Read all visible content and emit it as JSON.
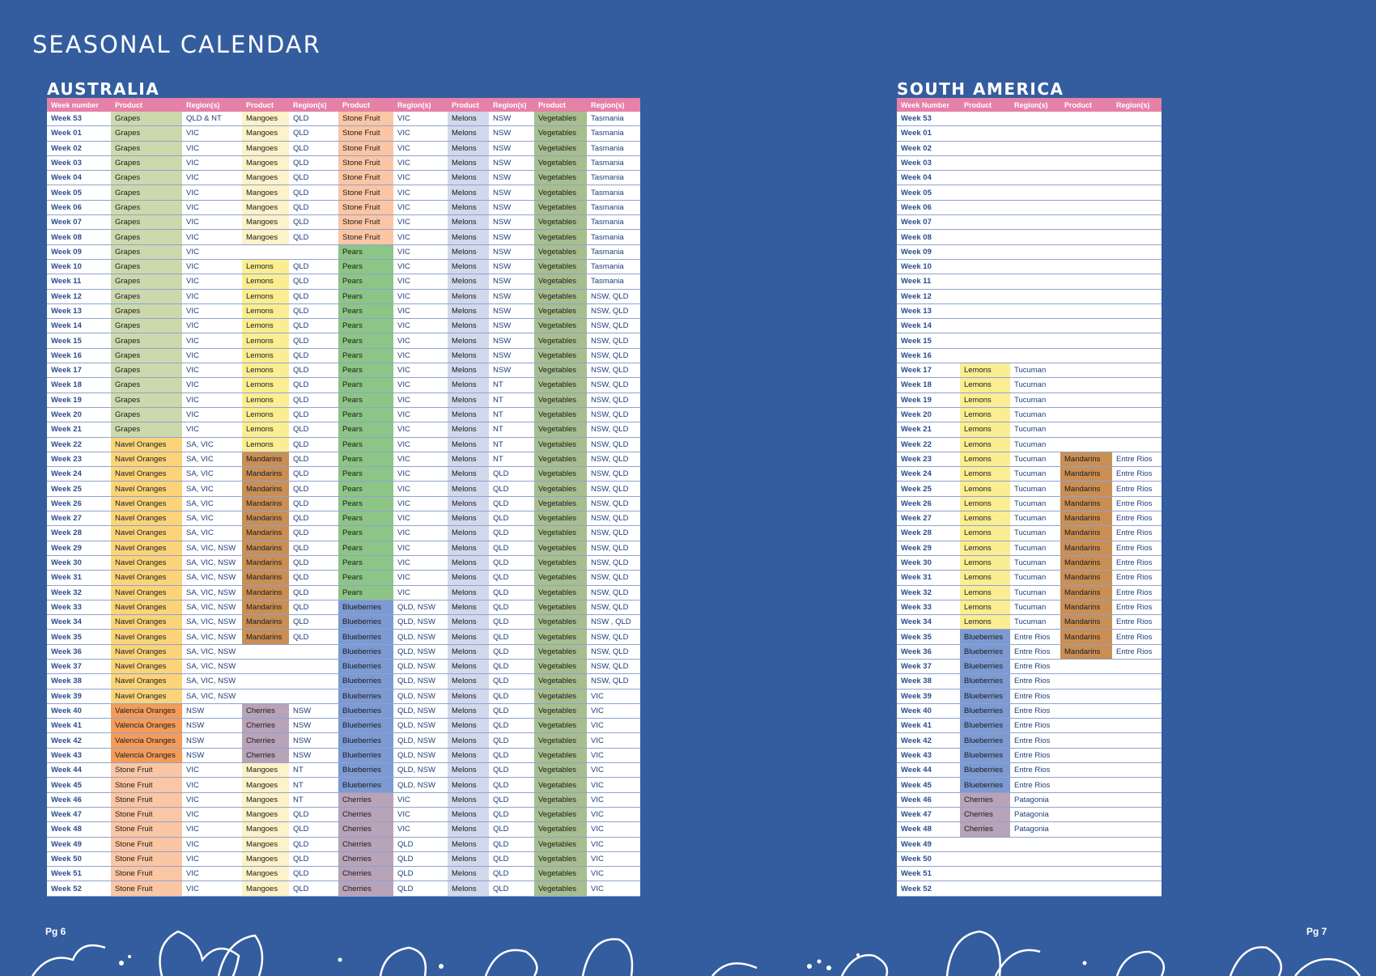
{
  "title": "SEASONAL CALENDAR",
  "australia": {
    "title": "AUSTRALIA",
    "headers": [
      "Week number",
      "Product",
      "Region(s)",
      "Product",
      "Region(s)",
      "Product",
      "Region(s)",
      "Product",
      "Region(s)",
      "Product",
      "Region(s)"
    ],
    "rows": [
      [
        "Week 53",
        "Grapes",
        "QLD & NT",
        "Mangoes",
        "QLD",
        "Stone Fruit",
        "VIC",
        "Melons",
        "NSW",
        "Vegetables",
        "Tasmania"
      ],
      [
        "Week 01",
        "Grapes",
        "VIC",
        "Mangoes",
        "QLD",
        "Stone Fruit",
        "VIC",
        "Melons",
        "NSW",
        "Vegetables",
        "Tasmania"
      ],
      [
        "Week 02",
        "Grapes",
        "VIC",
        "Mangoes",
        "QLD",
        "Stone Fruit",
        "VIC",
        "Melons",
        "NSW",
        "Vegetables",
        "Tasmania"
      ],
      [
        "Week 03",
        "Grapes",
        "VIC",
        "Mangoes",
        "QLD",
        "Stone Fruit",
        "VIC",
        "Melons",
        "NSW",
        "Vegetables",
        "Tasmania"
      ],
      [
        "Week 04",
        "Grapes",
        "VIC",
        "Mangoes",
        "QLD",
        "Stone Fruit",
        "VIC",
        "Melons",
        "NSW",
        "Vegetables",
        "Tasmania"
      ],
      [
        "Week 05",
        "Grapes",
        "VIC",
        "Mangoes",
        "QLD",
        "Stone Fruit",
        "VIC",
        "Melons",
        "NSW",
        "Vegetables",
        "Tasmania"
      ],
      [
        "Week 06",
        "Grapes",
        "VIC",
        "Mangoes",
        "QLD",
        "Stone Fruit",
        "VIC",
        "Melons",
        "NSW",
        "Vegetables",
        "Tasmania"
      ],
      [
        "Week 07",
        "Grapes",
        "VIC",
        "Mangoes",
        "QLD",
        "Stone Fruit",
        "VIC",
        "Melons",
        "NSW",
        "Vegetables",
        "Tasmania"
      ],
      [
        "Week 08",
        "Grapes",
        "VIC",
        "Mangoes",
        "QLD",
        "Stone Fruit",
        "VIC",
        "Melons",
        "NSW",
        "Vegetables",
        "Tasmania"
      ],
      [
        "Week 09",
        "Grapes",
        "VIC",
        "",
        "",
        "Pears",
        "VIC",
        "Melons",
        "NSW",
        "Vegetables",
        "Tasmania"
      ],
      [
        "Week 10",
        "Grapes",
        "VIC",
        "Lemons",
        "QLD",
        "Pears",
        "VIC",
        "Melons",
        "NSW",
        "Vegetables",
        "Tasmania"
      ],
      [
        "Week 11",
        "Grapes",
        "VIC",
        "Lemons",
        "QLD",
        "Pears",
        "VIC",
        "Melons",
        "NSW",
        "Vegetables",
        "Tasmania"
      ],
      [
        "Week 12",
        "Grapes",
        "VIC",
        "Lemons",
        "QLD",
        "Pears",
        "VIC",
        "Melons",
        "NSW",
        "Vegetables",
        "NSW, QLD"
      ],
      [
        "Week 13",
        "Grapes",
        "VIC",
        "Lemons",
        "QLD",
        "Pears",
        "VIC",
        "Melons",
        "NSW",
        "Vegetables",
        "NSW, QLD"
      ],
      [
        "Week 14",
        "Grapes",
        "VIC",
        "Lemons",
        "QLD",
        "Pears",
        "VIC",
        "Melons",
        "NSW",
        "Vegetables",
        "NSW, QLD"
      ],
      [
        "Week 15",
        "Grapes",
        "VIC",
        "Lemons",
        "QLD",
        "Pears",
        "VIC",
        "Melons",
        "NSW",
        "Vegetables",
        "NSW, QLD"
      ],
      [
        "Week 16",
        "Grapes",
        "VIC",
        "Lemons",
        "QLD",
        "Pears",
        "VIC",
        "Melons",
        "NSW",
        "Vegetables",
        "NSW, QLD"
      ],
      [
        "Week 17",
        "Grapes",
        "VIC",
        "Lemons",
        "QLD",
        "Pears",
        "VIC",
        "Melons",
        "NSW",
        "Vegetables",
        "NSW, QLD"
      ],
      [
        "Week 18",
        "Grapes",
        "VIC",
        "Lemons",
        "QLD",
        "Pears",
        "VIC",
        "Melons",
        "NT",
        "Vegetables",
        "NSW, QLD"
      ],
      [
        "Week 19",
        "Grapes",
        "VIC",
        "Lemons",
        "QLD",
        "Pears",
        "VIC",
        "Melons",
        "NT",
        "Vegetables",
        "NSW, QLD"
      ],
      [
        "Week 20",
        "Grapes",
        "VIC",
        "Lemons",
        "QLD",
        "Pears",
        "VIC",
        "Melons",
        "NT",
        "Vegetables",
        "NSW, QLD"
      ],
      [
        "Week 21",
        "Grapes",
        "VIC",
        "Lemons",
        "QLD",
        "Pears",
        "VIC",
        "Melons",
        "NT",
        "Vegetables",
        "NSW, QLD"
      ],
      [
        "Week 22",
        "Navel Oranges",
        "SA, VIC",
        "Lemons",
        "QLD",
        "Pears",
        "VIC",
        "Melons",
        "NT",
        "Vegetables",
        "NSW, QLD"
      ],
      [
        "Week  23",
        "Navel Oranges",
        "SA, VIC",
        "Mandarins",
        "QLD",
        "Pears",
        "VIC",
        "Melons",
        "NT",
        "Vegetables",
        "NSW, QLD"
      ],
      [
        "Week 24",
        "Navel Oranges",
        "SA, VIC",
        "Mandarins",
        "QLD",
        "Pears",
        "VIC",
        "Melons",
        "QLD",
        "Vegetables",
        "NSW, QLD"
      ],
      [
        "Week 25",
        "Navel Oranges",
        "SA, VIC",
        "Mandarins",
        "QLD",
        "Pears",
        "VIC",
        "Melons",
        "QLD",
        "Vegetables",
        "NSW, QLD"
      ],
      [
        "Week 26",
        "Navel Oranges",
        "SA, VIC",
        "Mandarins",
        "QLD",
        "Pears",
        "VIC",
        "Melons",
        "QLD",
        "Vegetables",
        "NSW, QLD"
      ],
      [
        "Week 27",
        "Navel Oranges",
        "SA, VIC",
        "Mandarins",
        "QLD",
        "Pears",
        "VIC",
        "Melons",
        "QLD",
        "Vegetables",
        "NSW, QLD"
      ],
      [
        "Week 28",
        "Navel Oranges",
        "SA, VIC",
        "Mandarins",
        "QLD",
        "Pears",
        "VIC",
        "Melons",
        "QLD",
        "Vegetables",
        "NSW, QLD"
      ],
      [
        "Week 29",
        "Navel Oranges",
        "SA, VIC, NSW",
        "Mandarins",
        "QLD",
        "Pears",
        "VIC",
        "Melons",
        "QLD",
        "Vegetables",
        "NSW, QLD"
      ],
      [
        "Week 30",
        "Navel Oranges",
        "SA, VIC, NSW",
        "Mandarins",
        "QLD",
        "Pears",
        "VIC",
        "Melons",
        "QLD",
        "Vegetables",
        "NSW, QLD"
      ],
      [
        "Week 31",
        "Navel Oranges",
        "SA, VIC, NSW",
        "Mandarins",
        "QLD",
        "Pears",
        "VIC",
        "Melons",
        "QLD",
        "Vegetables",
        "NSW, QLD"
      ],
      [
        "Week 32",
        "Navel Oranges",
        "SA, VIC, NSW",
        "Mandarins",
        "QLD",
        "Pears",
        "VIC",
        "Melons",
        "QLD",
        "Vegetables",
        "NSW, QLD"
      ],
      [
        "Week 33",
        "Navel Oranges",
        "SA, VIC, NSW",
        "Mandarins",
        "QLD",
        "Blueberries",
        "QLD, NSW",
        "Melons",
        "QLD",
        "Vegetables",
        "NSW, QLD"
      ],
      [
        "Week 34",
        "Navel Oranges",
        "SA, VIC, NSW",
        "Mandarins",
        "QLD",
        "Blueberries",
        "QLD, NSW",
        "Melons",
        "QLD",
        "Vegetables",
        "NSW , QLD"
      ],
      [
        "Week 35",
        "Navel Oranges",
        "SA, VIC, NSW",
        "Mandarins",
        "QLD",
        "Blueberries",
        "QLD, NSW",
        "Melons",
        "QLD",
        "Vegetables",
        "NSW, QLD"
      ],
      [
        "Week 36",
        "Navel Oranges",
        "SA, VIC, NSW",
        "",
        "",
        "Blueberries",
        "QLD, NSW",
        "Melons",
        "QLD",
        "Vegetables",
        "NSW, QLD"
      ],
      [
        "Week 37",
        "Navel Oranges",
        "SA, VIC, NSW",
        "",
        "",
        "Blueberries",
        "QLD, NSW",
        "Melons",
        "QLD",
        "Vegetables",
        "NSW, QLD"
      ],
      [
        "Week 38",
        "Navel Oranges",
        "SA, VIC, NSW",
        "",
        "",
        "Blueberries",
        "QLD, NSW",
        "Melons",
        "QLD",
        "Vegetables",
        "NSW, QLD"
      ],
      [
        "Week 39",
        "Navel Oranges",
        "SA, VIC, NSW",
        "",
        "",
        "Blueberries",
        "QLD, NSW",
        "Melons",
        "QLD",
        "Vegetables",
        "VIC"
      ],
      [
        "Week 40",
        "Valencia Oranges",
        "NSW",
        "Cherries",
        "NSW",
        "Blueberries",
        "QLD, NSW",
        "Melons",
        "QLD",
        "Vegetables",
        "VIC"
      ],
      [
        "Week 41",
        "Valencia Oranges",
        "NSW",
        "Cherries",
        "NSW",
        "Blueberries",
        "QLD, NSW",
        "Melons",
        "QLD",
        "Vegetables",
        "VIC"
      ],
      [
        "Week 42",
        "Valencia Oranges",
        "NSW",
        "Cherries",
        "NSW",
        "Blueberries",
        "QLD, NSW",
        "Melons",
        "QLD",
        "Vegetables",
        "VIC"
      ],
      [
        "Week 43",
        "Valencia Oranges",
        "NSW",
        "Cherries",
        "NSW",
        "Blueberries",
        "QLD, NSW",
        "Melons",
        "QLD",
        "Vegetables",
        "VIC"
      ],
      [
        "Week 44",
        "Stone Fruit",
        "VIC",
        "Mangoes",
        "NT",
        "Blueberries",
        "QLD, NSW",
        "Melons",
        "QLD",
        "Vegetables",
        "VIC"
      ],
      [
        "Week 45",
        "Stone Fruit",
        "VIC",
        "Mangoes",
        "NT",
        "Blueberries",
        "QLD, NSW",
        "Melons",
        "QLD",
        "Vegetables",
        "VIC"
      ],
      [
        "Week 46",
        "Stone Fruit",
        "VIC",
        "Mangoes",
        "NT",
        "Cherries",
        "VIC",
        "Melons",
        "QLD",
        "Vegetables",
        "VIC"
      ],
      [
        "Week 47",
        "Stone Fruit",
        "VIC",
        "Mangoes",
        "QLD",
        "Cherries",
        "VIC",
        "Melons",
        "QLD",
        "Vegetables",
        "VIC"
      ],
      [
        "Week 48",
        "Stone Fruit",
        "VIC",
        "Mangoes",
        "QLD",
        "Cherries",
        "VIC",
        "Melons",
        "QLD",
        "Vegetables",
        "VIC"
      ],
      [
        "Week 49",
        "Stone Fruit",
        "VIC",
        "Mangoes",
        "QLD",
        "Cherries",
        "QLD",
        "Melons",
        "QLD",
        "Vegetables",
        "VIC"
      ],
      [
        "Week 50",
        "Stone Fruit",
        "VIC",
        "Mangoes",
        "QLD",
        "Cherries",
        "QLD",
        "Melons",
        "QLD",
        "Vegetables",
        "VIC"
      ],
      [
        "Week 51",
        "Stone Fruit",
        "VIC",
        "Mangoes",
        "QLD",
        "Cherries",
        "QLD",
        "Melons",
        "QLD",
        "Vegetables",
        "VIC"
      ],
      [
        "Week 52",
        "Stone Fruit",
        "VIC",
        "Mangoes",
        "QLD",
        "Cherries",
        "QLD",
        "Melons",
        "QLD",
        "Vegetables",
        "VIC"
      ]
    ]
  },
  "south_america": {
    "title": "SOUTH  AMERICA",
    "headers": [
      "Week Number",
      "Product",
      "Region(s)",
      "Product",
      "Region(s)"
    ],
    "rows": [
      [
        "Week 53",
        "",
        "",
        "",
        ""
      ],
      [
        "Week 01",
        "",
        "",
        "",
        ""
      ],
      [
        "Week 02",
        "",
        "",
        "",
        ""
      ],
      [
        "Week 03",
        "",
        "",
        "",
        ""
      ],
      [
        "Week 04",
        "",
        "",
        "",
        ""
      ],
      [
        "Week 05",
        "",
        "",
        "",
        ""
      ],
      [
        "Week 06",
        "",
        "",
        "",
        ""
      ],
      [
        "Week 07",
        "",
        "",
        "",
        ""
      ],
      [
        "Week 08",
        "",
        "",
        "",
        ""
      ],
      [
        "Week 09",
        "",
        "",
        "",
        ""
      ],
      [
        "Week 10",
        "",
        "",
        "",
        ""
      ],
      [
        "Week 11",
        "",
        "",
        "",
        ""
      ],
      [
        "Week 12",
        "",
        "",
        "",
        ""
      ],
      [
        "Week 13",
        "",
        "",
        "",
        ""
      ],
      [
        "Week 14",
        "",
        "",
        "",
        ""
      ],
      [
        "Week 15",
        "",
        "",
        "",
        ""
      ],
      [
        "Week 16",
        "",
        "",
        "",
        ""
      ],
      [
        "Week 17",
        "Lemons",
        "Tucuman",
        "",
        ""
      ],
      [
        "Week 18",
        "Lemons",
        "Tucuman",
        "",
        ""
      ],
      [
        "Week 19",
        "Lemons",
        "Tucuman",
        "",
        ""
      ],
      [
        "Week 20",
        "Lemons",
        "Tucuman",
        "",
        ""
      ],
      [
        "Week 21",
        "Lemons",
        "Tucuman",
        "",
        ""
      ],
      [
        "Week 22",
        "Lemons",
        "Tucuman",
        "",
        ""
      ],
      [
        "Week 23",
        "Lemons",
        "Tucuman",
        "Mandarins",
        "Entre Rios"
      ],
      [
        "Week 24",
        "Lemons",
        "Tucuman",
        "Mandarins",
        "Entre Rios"
      ],
      [
        "Week 25",
        "Lemons",
        "Tucuman",
        "Mandarins",
        "Entre Rios"
      ],
      [
        "Week 26",
        "Lemons",
        "Tucuman",
        "Mandarins",
        "Entre Rios"
      ],
      [
        "Week 27",
        "Lemons",
        "Tucuman",
        "Mandarins",
        "Entre Rios"
      ],
      [
        "Week 28",
        "Lemons",
        "Tucuman",
        "Mandarins",
        "Entre Rios"
      ],
      [
        "Week 29",
        "Lemons",
        "Tucuman",
        "Mandarins",
        "Entre Rios"
      ],
      [
        "Week 30",
        "Lemons",
        "Tucuman",
        "Mandarins",
        "Entre Rios"
      ],
      [
        "Week 31",
        "Lemons",
        "Tucuman",
        "Mandarins",
        "Entre Rios"
      ],
      [
        "Week 32",
        "Lemons",
        "Tucuman",
        "Mandarins",
        "Entre Rios"
      ],
      [
        "Week 33",
        "Lemons",
        "Tucuman",
        "Mandarins",
        "Entre Rios"
      ],
      [
        "Week 34",
        "Lemons",
        "Tucuman",
        "Mandarins",
        "Entre Rios"
      ],
      [
        "Week 35",
        "Blueberries",
        "Entre Rios",
        "Mandarins",
        "Entre Rios"
      ],
      [
        "Week 36",
        "Blueberries",
        "Entre Rios",
        "Mandarins",
        "Entre Rios"
      ],
      [
        "Week 37",
        "Blueberries",
        "Entre Rios",
        "",
        ""
      ],
      [
        "Week 38",
        "Blueberries",
        "Entre Rios",
        "",
        ""
      ],
      [
        "Week 39",
        "Blueberries",
        "Entre Rios",
        "",
        ""
      ],
      [
        "Week 40",
        "Blueberries",
        "Entre Rios",
        "",
        ""
      ],
      [
        "Week 41",
        "Blueberries",
        "Entre Rios",
        "",
        ""
      ],
      [
        "Week 42",
        "Blueberries",
        "Entre Rios",
        "",
        ""
      ],
      [
        "Week 43",
        "Blueberries",
        "Entre Rios",
        "",
        ""
      ],
      [
        "Week 44",
        "Blueberries",
        "Entre Rios",
        "",
        ""
      ],
      [
        "Week 45",
        "Blueberries",
        "Entre Rios",
        "",
        ""
      ],
      [
        "Week 46",
        "Cherries",
        "Patagonia",
        "",
        ""
      ],
      [
        "Week 47",
        "Cherries",
        "Patagonia",
        "",
        ""
      ],
      [
        "Week 48",
        "Cherries",
        "Patagonia",
        "",
        ""
      ],
      [
        "Week 49",
        "",
        "",
        "",
        ""
      ],
      [
        "Week 50",
        "",
        "",
        "",
        ""
      ],
      [
        "Week 51",
        "",
        "",
        "",
        ""
      ],
      [
        "Week 52",
        "",
        "",
        "",
        ""
      ]
    ]
  },
  "product_colors": {
    "Grapes": "#ccd9ad",
    "Mangoes": "#fdf2c8",
    "Lemons": "#fbee92",
    "Mandarins": "#c98f55",
    "Stone Fruit": "#fbc6a4",
    "Pears": "#8cc585",
    "Melons": "#d2d9ec",
    "Vegetables": "#a7be8f",
    "Navel Oranges": "#fbd47a",
    "Valencia Oranges": "#f39c5b",
    "Cherries": "#b8a3b9",
    "Blueberries": "#7d9ad2"
  },
  "page_left": "Pg 6",
  "page_right": "Pg 7"
}
